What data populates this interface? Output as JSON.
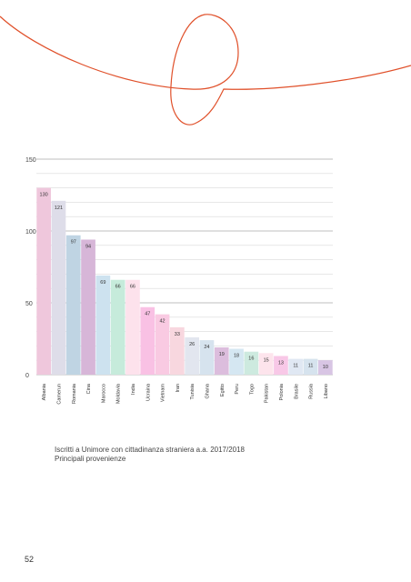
{
  "chart_data": {
    "type": "bar",
    "categories": [
      "Albania",
      "Camerun",
      "Romania",
      "Cina",
      "Marocco",
      "Moldavia",
      "India",
      "Ucraina",
      "Vietnam",
      "Iran",
      "Tunisia",
      "Ghana",
      "Egitto",
      "Peru",
      "Togo",
      "Pakistan",
      "Polonia",
      "Brasile",
      "Russia",
      "Libano"
    ],
    "values": [
      130,
      121,
      97,
      94,
      69,
      66,
      66,
      47,
      42,
      33,
      26,
      24,
      19,
      18,
      16,
      15,
      13,
      11,
      11,
      10
    ],
    "colors": [
      "#efc7dc",
      "#dedde9",
      "#bfd4e3",
      "#d7b6d8",
      "#cde2ef",
      "#c6ebdb",
      "#fde2ec",
      "#f9c1e4",
      "#f9cae2",
      "#f8d7df",
      "#e2e6ef",
      "#d6e3ee",
      "#dcbddd",
      "#d5e7f2",
      "#cdeadf",
      "#fde4ec",
      "#f8c8e7",
      "#e0e8f3",
      "#d6e3ee",
      "#d8c5e4"
    ],
    "yticks": [
      0,
      50,
      100,
      150
    ],
    "ylim": [
      0,
      150
    ],
    "grid": true,
    "title": "",
    "xlabel": "",
    "ylabel": ""
  },
  "caption": {
    "line1": "Iscritti a Unimore con cittadinanza straniera a.a. 2017/2018",
    "line2": "Principali provenienze"
  },
  "page_number": "52",
  "accent_color": "#e0502a"
}
